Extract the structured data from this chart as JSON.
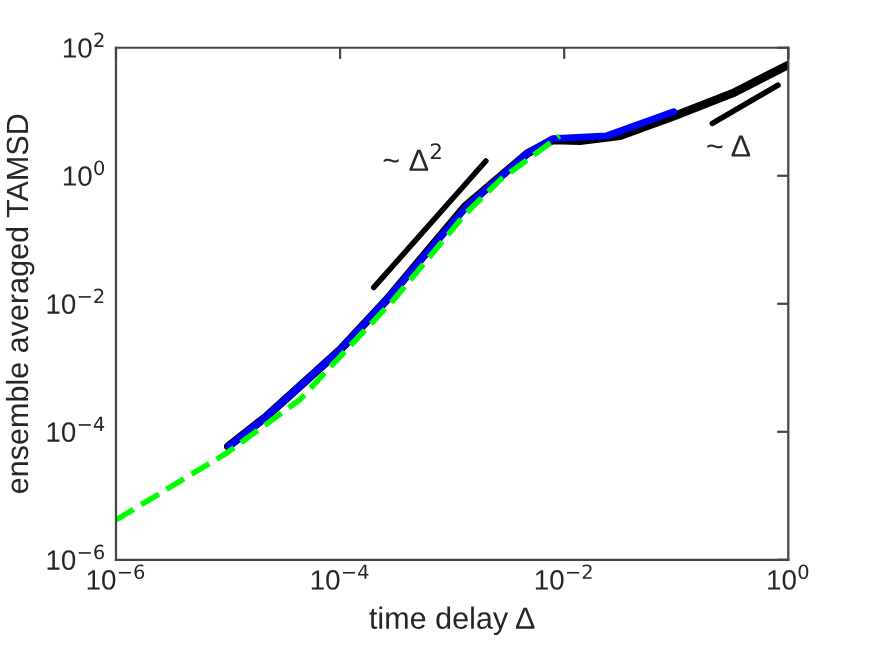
{
  "chart_data": {
    "type": "line",
    "xlabel": "time delay Δ",
    "ylabel": "ensemble averaged TAMSD",
    "log": "xy",
    "grid": false,
    "legend": false,
    "xlim": [
      1e-06,
      1
    ],
    "ylim": [
      1e-06,
      100
    ],
    "xticks": [
      {
        "value": 1e-06,
        "label": "10$^{−6}$"
      },
      {
        "value": 0.0001,
        "label": "10$^{−4}$"
      },
      {
        "value": 0.01,
        "label": "10$^{−2}$"
      },
      {
        "value": 1,
        "label": "10$^{0}$"
      }
    ],
    "yticks": [
      {
        "value": 1e-06,
        "label": "10$^{−6}$"
      },
      {
        "value": 0.0001,
        "label": "10$^{−4}$"
      },
      {
        "value": 0.01,
        "label": "10$^{−2}$"
      },
      {
        "value": 1,
        "label": "10$^{0}$"
      },
      {
        "value": 100,
        "label": "10$^{2}$"
      }
    ],
    "series": [
      {
        "color": "#000000",
        "line_style": "solid",
        "x": [
          1e-05,
          2.2e-05,
          0.0001,
          0.00026,
          0.0013,
          0.0047,
          0.0079,
          0.0138,
          0.0316,
          0.095,
          0.32,
          1
        ],
        "values": [
          5.9e-05,
          0.000174,
          0.0019,
          0.0115,
          0.33,
          2.24,
          3.6,
          3.5,
          4.2,
          8.5,
          19.5,
          54
        ]
      },
      {
        "color": "#0000ff",
        "line_style": "solid",
        "x": [
          1.02e-05,
          2.2e-05,
          0.0001,
          0.00026,
          0.00135,
          0.0047,
          0.0079,
          0.024,
          0.095
        ],
        "values": [
          5.9e-05,
          0.000174,
          0.0019,
          0.0115,
          0.33,
          2.24,
          3.8,
          4.2,
          10
        ]
      },
      {
        "color": "#00ff00",
        "line_style": "dashed",
        "x": [
          1e-06,
          9.8e-06,
          4.4e-05,
          0.0001,
          0.0003,
          0.00133,
          0.0027,
          0.0091
        ],
        "values": [
          4.2e-06,
          4.7e-05,
          0.00032,
          0.0015,
          0.0115,
          0.26,
          0.87,
          4.2
        ]
      },
      {
        "color": "#000000",
        "line_style": "solid",
        "x": [
          0.0002,
          0.002
        ],
        "values": [
          0.018,
          1.7
        ]
      },
      {
        "color": "#000000",
        "line_style": "solid",
        "x": [
          0.21,
          0.81
        ],
        "values": [
          6.6,
          26
        ]
      }
    ],
    "annotations": [
      "~ Δ$^{2}$",
      "~ Δ"
    ]
  }
}
